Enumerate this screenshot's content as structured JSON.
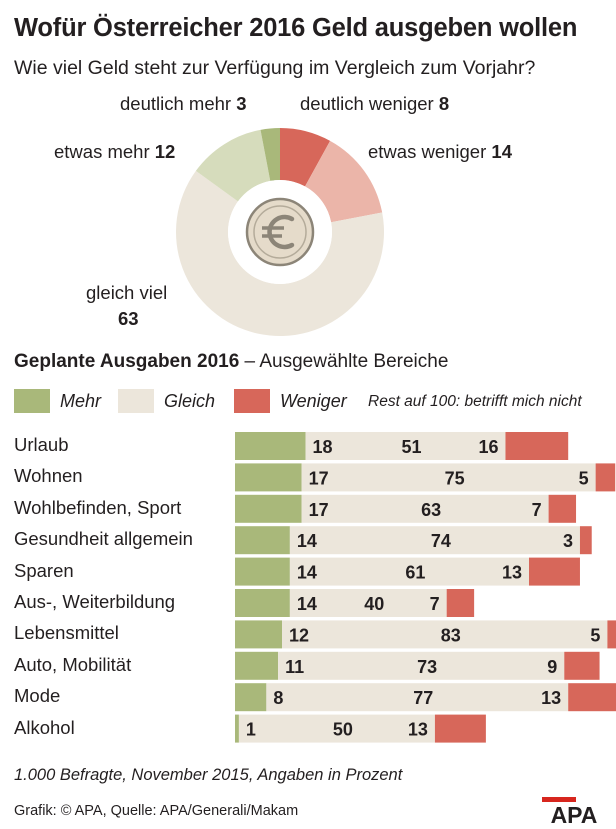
{
  "title": "Wofür Österreicher 2016 Geld ausgeben wollen",
  "subtitle": "Wie viel Geld steht zur Verfügung im Vergleich zum Vorjahr?",
  "colors": {
    "mehr": "#a9b87a",
    "gleich": "#ece6db",
    "weniger": "#d7675a",
    "etwas_mehr": "#d6dcbc",
    "etwas_weniger": "#ebb5a9",
    "text": "#231f20"
  },
  "donut_icon": "euro-coin-icon",
  "section": {
    "title": "Geplante Ausgaben 2016",
    "suffix": "– Ausgewählte Bereiche"
  },
  "legend": {
    "mehr": "Mehr",
    "gleich": "Gleich",
    "weniger": "Weniger",
    "note": "Rest auf 100: betrifft mich nicht"
  },
  "chart_data": [
    {
      "type": "pie",
      "title": "Wie viel Geld steht zur Verfügung im Vergleich zum Vorjahr?",
      "unit": "Prozent",
      "slices": [
        {
          "label": "deutlich weniger",
          "value": 8
        },
        {
          "label": "etwas weniger",
          "value": 14
        },
        {
          "label": "gleich viel",
          "value": 63
        },
        {
          "label": "etwas mehr",
          "value": 12
        },
        {
          "label": "deutlich mehr",
          "value": 3
        }
      ]
    },
    {
      "type": "bar",
      "stacked": true,
      "orientation": "horizontal",
      "title": "Geplante Ausgaben 2016 – Ausgewählte Bereiche",
      "unit": "Prozent",
      "categories": [
        "Urlaub",
        "Wohnen",
        "Wohlbefinden, Sport",
        "Gesundheit allgemein",
        "Sparen",
        "Aus-, Weiterbildung",
        "Lebensmittel",
        "Auto, Mobilität",
        "Mode",
        "Alkohol"
      ],
      "series": [
        {
          "name": "Mehr",
          "values": [
            18,
            17,
            17,
            14,
            14,
            14,
            12,
            11,
            8,
            1
          ]
        },
        {
          "name": "Gleich",
          "values": [
            51,
            75,
            63,
            74,
            61,
            40,
            83,
            73,
            77,
            50
          ]
        },
        {
          "name": "Weniger",
          "values": [
            16,
            5,
            7,
            3,
            13,
            7,
            5,
            9,
            13,
            13
          ]
        }
      ],
      "xlim": [
        0,
        100
      ],
      "legend_position": "top",
      "note": "Rest auf 100: betrifft mich nicht"
    }
  ],
  "footnote": "1.000 Befragte, November 2015, Angaben in Prozent",
  "credit": "Grafik: © APA, Quelle: APA/Generali/Makam",
  "logo_text": "APA"
}
